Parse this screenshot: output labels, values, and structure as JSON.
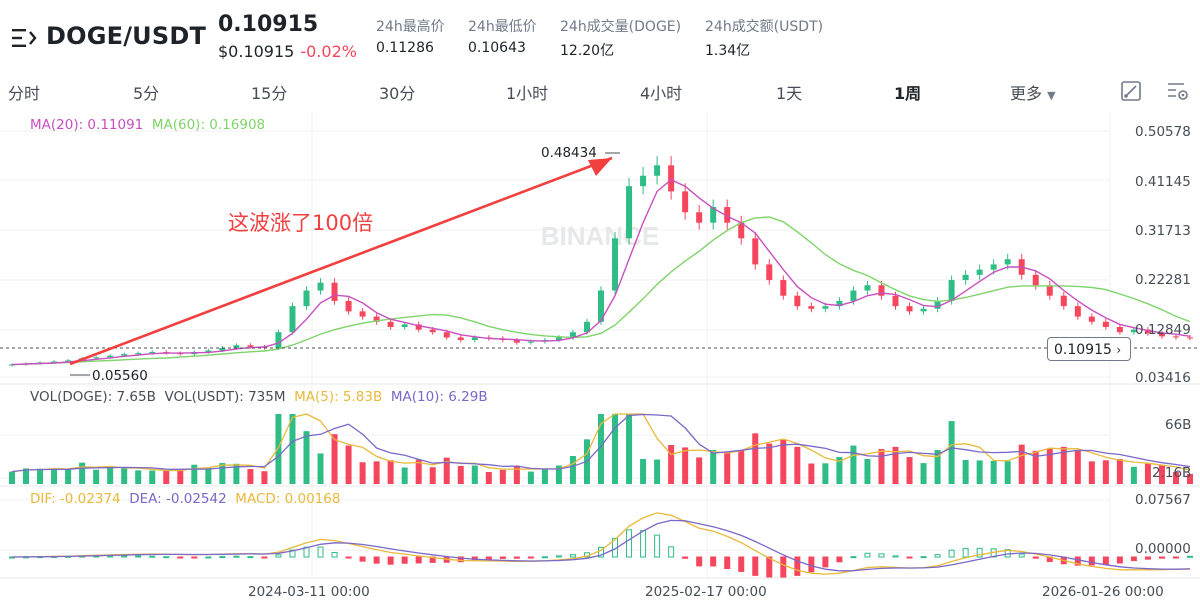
{
  "header": {
    "pair": "DOGE/USDT",
    "price": "0.10915",
    "price_usd": "$0.10915",
    "change": "-0.02%",
    "stats": [
      {
        "label": "24h最高价",
        "value": "0.11286"
      },
      {
        "label": "24h最低价",
        "value": "0.10643"
      },
      {
        "label": "24h成交量(DOGE)",
        "value": "12.20亿"
      },
      {
        "label": "24h成交额(USDT)",
        "value": "1.34亿"
      }
    ]
  },
  "tabs": [
    "分时",
    "5分",
    "15分",
    "30分",
    "1小时",
    "4小时",
    "1天",
    "1周"
  ],
  "active_tab": "1周",
  "more_label": "更多",
  "legends": {
    "ma20": "MA(20): 0.11091",
    "ma60": "MA(60): 0.16908",
    "vol_doge": "VOL(DOGE): 7.65B",
    "vol_usdt": "VOL(USDT): 735M",
    "ma5": "MA(5): 5.83B",
    "ma10": "MA(10): 6.29B",
    "dif": "DIF: -0.02374",
    "dea": "DEA: -0.02542",
    "macd": "MACD: 0.00168"
  },
  "price_axis": [
    "0.50578",
    "0.41145",
    "0.31713",
    "0.22281",
    "0.12849",
    "0.03416"
  ],
  "volume_axis": [
    "66B",
    "2.16B"
  ],
  "macd_axis": [
    "0.07567",
    "0.00000"
  ],
  "time_axis": [
    "2024-03-11 00:00",
    "2025-02-17 00:00",
    "2026-01-26 00:00"
  ],
  "high_marker": "0.48434",
  "low_marker": "0.05560",
  "last_price": "0.10915",
  "annotation": "这波涨了100倍",
  "watermark": "BINANCE",
  "colors": {
    "up": "#2ebd85",
    "down": "#f6465d",
    "ma20": "#c94fc0",
    "ma60": "#7fd46a",
    "ma5": "#e8b93a",
    "ma10": "#7b68c8",
    "annotation": "#f23f3f"
  },
  "chart_data": {
    "type": "candlestick",
    "price_range": [
      0.03416,
      0.50578
    ],
    "weekly_closes_approx": [
      0.058,
      0.06,
      0.062,
      0.064,
      0.066,
      0.07,
      0.072,
      0.075,
      0.078,
      0.08,
      0.082,
      0.08,
      0.078,
      0.082,
      0.085,
      0.09,
      0.095,
      0.092,
      0.09,
      0.12,
      0.17,
      0.2,
      0.215,
      0.18,
      0.16,
      0.15,
      0.14,
      0.13,
      0.135,
      0.125,
      0.12,
      0.11,
      0.105,
      0.11,
      0.108,
      0.105,
      0.1,
      0.102,
      0.105,
      0.11,
      0.12,
      0.14,
      0.2,
      0.3,
      0.4,
      0.42,
      0.44,
      0.39,
      0.35,
      0.33,
      0.36,
      0.33,
      0.3,
      0.25,
      0.22,
      0.19,
      0.17,
      0.165,
      0.17,
      0.18,
      0.2,
      0.21,
      0.19,
      0.17,
      0.16,
      0.165,
      0.18,
      0.22,
      0.23,
      0.24,
      0.25,
      0.26,
      0.23,
      0.21,
      0.19,
      0.17,
      0.15,
      0.14,
      0.13,
      0.12,
      0.125,
      0.118,
      0.112,
      0.11,
      0.109
    ]
  }
}
